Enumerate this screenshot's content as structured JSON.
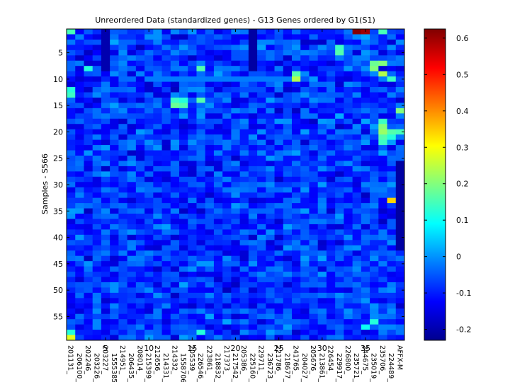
{
  "chart_data": {
    "type": "heatmap",
    "title": "Unreordered Data (standardized genes) - G13 Genes ordered by G1(S1)",
    "ylabel": "Samples - S566",
    "xlabel": "",
    "n_rows": 59,
    "n_cols": 39,
    "x_ticks": [
      5,
      10,
      15,
      20,
      25,
      30,
      35
    ],
    "y_ticks": [
      5,
      10,
      15,
      20,
      25,
      30,
      35,
      40,
      45,
      50,
      55
    ],
    "gene_labels": [
      "201131_",
      "206100_",
      "202246_",
      "203226_",
      "203227_",
      "1555385",
      "214951_",
      "206435_",
      "208014_",
      "215399_",
      "212656_",
      "214331_",
      "214332_",
      "1558706",
      "205539_",
      "226546_",
      "223861_",
      "218832_",
      "217373_",
      "217542_",
      "205386_",
      "225160_",
      "229711_",
      "236723_",
      "221786_",
      "218677_",
      "241765_",
      "204027_",
      "205676_",
      "213861_",
      "226454_",
      "229917_",
      "226800_",
      "235721_",
      "244675_",
      "235019_",
      "235706_",
      "224489_",
      "AFFX-M"
    ],
    "colorbar": {
      "colormap": "jet",
      "min": -0.23,
      "max": 0.625,
      "ticks": [
        -0.2,
        -0.1,
        0,
        0.1,
        0.2,
        0.3,
        0.4,
        0.5,
        0.6
      ]
    },
    "highlights": [
      {
        "row": 1,
        "col": 34,
        "value": 0.62
      },
      {
        "row": 1,
        "col": 35,
        "value": 0.6
      },
      {
        "row": 1,
        "col": 1,
        "value": 0.15
      },
      {
        "row": 1,
        "col": 37,
        "value": 0.15
      },
      {
        "row": 4,
        "col": 32,
        "value": 0.14
      },
      {
        "row": 5,
        "col": 32,
        "value": 0.16
      },
      {
        "row": 7,
        "col": 36,
        "value": 0.18
      },
      {
        "row": 7,
        "col": 37,
        "value": 0.2
      },
      {
        "row": 8,
        "col": 3,
        "value": 0.12
      },
      {
        "row": 8,
        "col": 16,
        "value": 0.16
      },
      {
        "row": 8,
        "col": 36,
        "value": 0.2
      },
      {
        "row": 9,
        "col": 27,
        "value": 0.16
      },
      {
        "row": 9,
        "col": 37,
        "value": 0.24
      },
      {
        "row": 10,
        "col": 27,
        "value": 0.24
      },
      {
        "row": 10,
        "col": 38,
        "value": 0.14
      },
      {
        "row": 12,
        "col": 1,
        "value": 0.12
      },
      {
        "row": 13,
        "col": 1,
        "value": 0.14
      },
      {
        "row": 14,
        "col": 13,
        "value": 0.14
      },
      {
        "row": 14,
        "col": 14,
        "value": 0.12
      },
      {
        "row": 14,
        "col": 16,
        "value": 0.16
      },
      {
        "row": 15,
        "col": 13,
        "value": 0.18
      },
      {
        "row": 15,
        "col": 14,
        "value": 0.16
      },
      {
        "row": 16,
        "col": 39,
        "value": 0.2
      },
      {
        "row": 18,
        "col": 37,
        "value": 0.14
      },
      {
        "row": 19,
        "col": 37,
        "value": 0.2
      },
      {
        "row": 20,
        "col": 37,
        "value": 0.22
      },
      {
        "row": 20,
        "col": 38,
        "value": 0.16
      },
      {
        "row": 20,
        "col": 39,
        "value": 0.15
      },
      {
        "row": 21,
        "col": 37,
        "value": 0.16
      },
      {
        "row": 21,
        "col": 38,
        "value": 0.12
      },
      {
        "row": 22,
        "col": 37,
        "value": 0.14
      },
      {
        "row": 33,
        "col": 38,
        "value": 0.34
      },
      {
        "row": 56,
        "col": 36,
        "value": 0.12
      },
      {
        "row": 57,
        "col": 35,
        "value": 0.1
      },
      {
        "row": 59,
        "col": 1,
        "value": 0.28
      },
      {
        "row": 58,
        "col": 1,
        "value": 0.12
      },
      {
        "row": 58,
        "col": 16,
        "value": 0.12
      }
    ]
  }
}
